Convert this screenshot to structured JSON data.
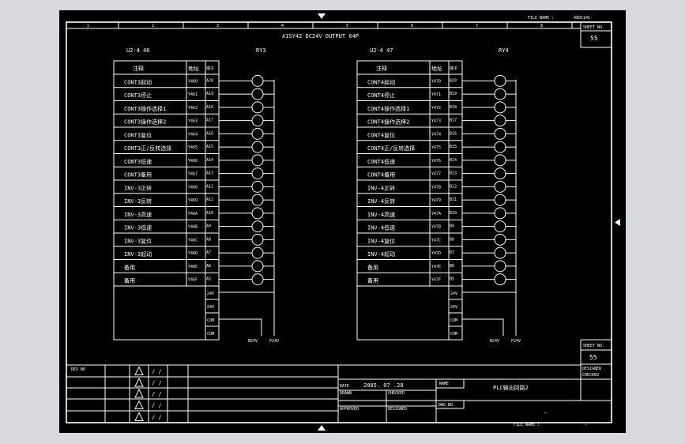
{
  "colors": {
    "background": "#000000",
    "lines": "#ffffff",
    "window": "#d8d9de"
  },
  "header": {
    "file_name_label": "FILE NAME :",
    "file_name_value": "4801145-",
    "module_title": "A1SY42  DC24V OUTPUT 64P",
    "sheet_no_label": "SHEET NO.",
    "sheet_no": "55",
    "ruler": [
      "1",
      "2",
      "3",
      "4",
      "5",
      "6",
      "7",
      "8"
    ]
  },
  "panels": [
    {
      "unit": "U2-4 46",
      "relay": "RY3",
      "col_comment": "注释",
      "col_addr": "地址",
      "col_term": "端子",
      "rows": [
        {
          "comment": "CONT3起动",
          "addr": "Y460",
          "term": "A20"
        },
        {
          "comment": "CONT3停止",
          "addr": "Y461",
          "term": "A19"
        },
        {
          "comment": "CONT3操作选择1",
          "addr": "Y462",
          "term": "A18"
        },
        {
          "comment": "CONT3操作选择2",
          "addr": "Y463",
          "term": "A17"
        },
        {
          "comment": "CONT3复位",
          "addr": "Y464",
          "term": "A16"
        },
        {
          "comment": "CONT3正/反转选择",
          "addr": "Y465",
          "term": "A15"
        },
        {
          "comment": "CONT3低速",
          "addr": "Y466",
          "term": "A14"
        },
        {
          "comment": "CONT3备用",
          "addr": "Y467",
          "term": "A13"
        },
        {
          "comment": "INV-3正转",
          "addr": "Y468",
          "term": "A12"
        },
        {
          "comment": "INV-3反转",
          "addr": "Y469",
          "term": "A11"
        },
        {
          "comment": "INV-3高速",
          "addr": "Y46A",
          "term": "A10"
        },
        {
          "comment": "INV-3低速",
          "addr": "Y46B",
          "term": "A9"
        },
        {
          "comment": "INV-3复位",
          "addr": "Y46C",
          "term": "A8"
        },
        {
          "comment": "INV-3起动",
          "addr": "Y46D",
          "term": "A7"
        },
        {
          "comment": "备用",
          "addr": "Y46E",
          "term": "A6"
        },
        {
          "comment": "备用",
          "addr": "Y46F",
          "term": "A5"
        }
      ],
      "extra_terms": [
        "24V",
        "24V",
        "COM",
        "COM"
      ],
      "n_label": "N24V",
      "p_label": "P24V"
    },
    {
      "unit": "U2-4 47",
      "relay": "RY4",
      "col_comment": "注释",
      "col_addr": "地址",
      "col_term": "端子",
      "rows": [
        {
          "comment": "CONT4起动",
          "addr": "Y470",
          "term": "B20"
        },
        {
          "comment": "CONT4停止",
          "addr": "Y471",
          "term": "B19"
        },
        {
          "comment": "CONT4操作选择1",
          "addr": "Y472",
          "term": "B18"
        },
        {
          "comment": "CONT4操作选择2",
          "addr": "Y473",
          "term": "B17"
        },
        {
          "comment": "CONT4复位",
          "addr": "Y474",
          "term": "B16"
        },
        {
          "comment": "CONT4正/反转选择",
          "addr": "Y475",
          "term": "B15"
        },
        {
          "comment": "CONT4低速",
          "addr": "Y476",
          "term": "B14"
        },
        {
          "comment": "CONT4备用",
          "addr": "Y477",
          "term": "B13"
        },
        {
          "comment": "INV-4正转",
          "addr": "Y478",
          "term": "B12"
        },
        {
          "comment": "INV-4反转",
          "addr": "Y479",
          "term": "B11"
        },
        {
          "comment": "INV-4高速",
          "addr": "Y47A",
          "term": "B10"
        },
        {
          "comment": "INV-4低速",
          "addr": "Y47B",
          "term": "B9"
        },
        {
          "comment": "INV-4复位",
          "addr": "Y47C",
          "term": "B8"
        },
        {
          "comment": "INV-4起动",
          "addr": "Y47D",
          "term": "B7"
        },
        {
          "comment": "备用",
          "addr": "Y47E",
          "term": "B6"
        },
        {
          "comment": "备用",
          "addr": "Y47F",
          "term": "B5"
        }
      ],
      "extra_terms": [
        "24V",
        "24V",
        "COM",
        "COM"
      ],
      "n_label": "N24V",
      "p_label": "P24V"
    }
  ],
  "title_block": {
    "rev_label": "REV NO",
    "rev_mark": "/ /",
    "date_label": "DATE",
    "date": "2005. 07 .28",
    "name_label": "NAME",
    "drawing_title": "PLC输出回路2",
    "dwg_no_label": "DWG NO.",
    "dwg_no": "—",
    "drawn_label": "DRAWN",
    "checked_label": "CHECKED",
    "approved_label": "APPROVED",
    "designed_label": "DESIGNED",
    "sheet_no_label": "SHEET NO.",
    "sheet_no": "55",
    "design_label": "DESIGNER",
    "check_label": "CHECKED",
    "file_name_label": "FILE NAME :",
    "file_name_value": "-"
  }
}
